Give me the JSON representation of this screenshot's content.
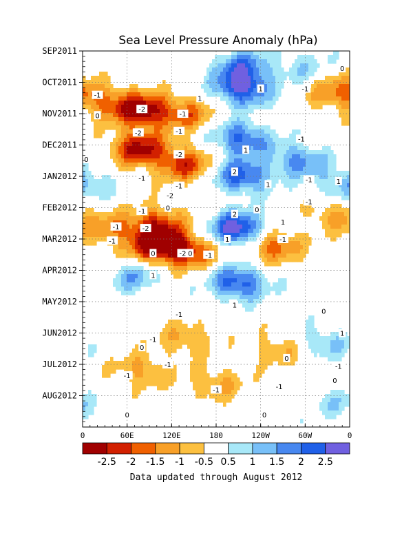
{
  "chart_data": {
    "type": "heatmap",
    "title": "Sea Level Pressure Anomaly (hPa)",
    "note": "Data updated through August 2012",
    "x_ticks": [
      "0",
      "60E",
      "120E",
      "180",
      "120W",
      "60W",
      "0"
    ],
    "x_tick_lon": [
      0,
      60,
      120,
      180,
      240,
      300,
      360
    ],
    "y_ticks": [
      "SEP2011",
      "OCT2011",
      "NOV2011",
      "DEC2011",
      "JAN2012",
      "FEB2012",
      "MAR2012",
      "APR2012",
      "MAY2012",
      "JUN2012",
      "JUL2012",
      "AUG2012"
    ],
    "y_tick_month": [
      0,
      1,
      2,
      3,
      4,
      5,
      6,
      7,
      8,
      9,
      10,
      11
    ],
    "ylim_month": [
      0,
      12
    ],
    "xlim_lon": [
      0,
      360
    ],
    "grid": true,
    "colorbar": {
      "tick_labels": [
        "-2.5",
        "-2",
        "-1.5",
        "-1",
        "-0.5",
        "0.5",
        "1",
        "1.5",
        "2",
        "2.5"
      ],
      "colors": [
        "#a00000",
        "#d22000",
        "#f06000",
        "#f8a028",
        "#fcc040",
        "#ffffff",
        "#a8e8f8",
        "#78c0f8",
        "#4888f0",
        "#2060e8",
        "#7060e0"
      ]
    },
    "levels": [
      -3,
      -2.5,
      -2,
      -1.5,
      -1,
      -0.5,
      0.5,
      1,
      1.5,
      2,
      2.5
    ],
    "anomaly_features": [
      {
        "lon": 80,
        "month": 1.9,
        "value": -2.9
      },
      {
        "lon": 140,
        "month": 2.0,
        "value": -1.6
      },
      {
        "lon": 30,
        "month": 1.6,
        "value": -1.3
      },
      {
        "lon": 75,
        "month": 3.1,
        "value": -2.6
      },
      {
        "lon": 135,
        "month": 3.6,
        "value": -2.2
      },
      {
        "lon": 100,
        "month": 5.5,
        "value": -2.0
      },
      {
        "lon": 35,
        "month": 5.7,
        "value": -1.3
      },
      {
        "lon": 100,
        "month": 6.2,
        "value": -3.2
      },
      {
        "lon": 145,
        "month": 6.4,
        "value": -2.0
      },
      {
        "lon": 255,
        "month": 6.2,
        "value": -2.0
      },
      {
        "lon": 335,
        "month": 5.2,
        "value": -1.1
      },
      {
        "lon": 340,
        "month": 1.3,
        "value": -1.5
      },
      {
        "lon": 140,
        "month": 9.2,
        "value": -1.1
      },
      {
        "lon": 80,
        "month": 10.2,
        "value": -1.2
      },
      {
        "lon": 265,
        "month": 9.5,
        "value": -1.0
      },
      {
        "lon": 180,
        "month": 10.6,
        "value": -1.1
      },
      {
        "lon": 215,
        "month": 0.5,
        "value": 1.8
      },
      {
        "lon": 215,
        "month": 1.2,
        "value": 2.6
      },
      {
        "lon": 215,
        "month": 2.8,
        "value": 2.2
      },
      {
        "lon": 215,
        "month": 4.0,
        "value": 2.3
      },
      {
        "lon": 210,
        "month": 5.7,
        "value": 3.1
      },
      {
        "lon": 210,
        "month": 7.4,
        "value": 2.4
      },
      {
        "lon": 70,
        "month": 7.2,
        "value": 1.3
      },
      {
        "lon": 295,
        "month": 0.5,
        "value": 0.9
      },
      {
        "lon": 290,
        "month": 3.5,
        "value": 1.7
      },
      {
        "lon": 345,
        "month": 4.3,
        "value": 0.9
      },
      {
        "lon": 10,
        "month": 4.2,
        "value": 0.7
      },
      {
        "lon": 345,
        "month": 11.3,
        "value": 0.8
      },
      {
        "lon": 325,
        "month": 9.3,
        "value": 1.1
      }
    ],
    "contour_labels": [
      {
        "text": "-1",
        "lon": 20,
        "month": 1.4
      },
      {
        "text": "-2",
        "lon": 80,
        "month": 1.85
      },
      {
        "text": "-1",
        "lon": 135,
        "month": 2.0
      },
      {
        "text": "-2",
        "lon": 75,
        "month": 2.6
      },
      {
        "text": "-1",
        "lon": 130,
        "month": 2.55
      },
      {
        "text": "-2",
        "lon": 130,
        "month": 3.3
      },
      {
        "text": "-1",
        "lon": 80,
        "month": 4.05
      },
      {
        "text": "-1",
        "lon": 130,
        "month": 4.3
      },
      {
        "text": "-2",
        "lon": 118,
        "month": 4.6
      },
      {
        "text": "-1",
        "lon": 80,
        "month": 5.1
      },
      {
        "text": "-1",
        "lon": 45,
        "month": 5.6
      },
      {
        "text": "-2",
        "lon": 85,
        "month": 5.65
      },
      {
        "text": "-1",
        "lon": 40,
        "month": 6.05
      },
      {
        "text": "-2",
        "lon": 135,
        "month": 6.45
      },
      {
        "text": "-1",
        "lon": 170,
        "month": 6.5
      },
      {
        "text": "-1",
        "lon": 270,
        "month": 6.0
      },
      {
        "text": "-1",
        "lon": 300,
        "month": 1.2
      },
      {
        "text": "-1",
        "lon": 295,
        "month": 2.8
      },
      {
        "text": "-1",
        "lon": 305,
        "month": 4.1
      },
      {
        "text": "-1",
        "lon": 305,
        "month": 4.8
      },
      {
        "text": "-1",
        "lon": 130,
        "month": 8.4
      },
      {
        "text": "-1",
        "lon": 95,
        "month": 9.2
      },
      {
        "text": "-1",
        "lon": 115,
        "month": 10.0
      },
      {
        "text": "-1",
        "lon": 60,
        "month": 10.35
      },
      {
        "text": "-1",
        "lon": 180,
        "month": 10.8
      },
      {
        "text": "-1",
        "lon": 265,
        "month": 10.7
      },
      {
        "text": "-1",
        "lon": 345,
        "month": 10.05
      },
      {
        "text": "1",
        "lon": 240,
        "month": 1.2
      },
      {
        "text": "1",
        "lon": 158,
        "month": 1.5
      },
      {
        "text": "1",
        "lon": 220,
        "month": 3.15
      },
      {
        "text": "2",
        "lon": 205,
        "month": 3.85
      },
      {
        "text": "1",
        "lon": 250,
        "month": 4.25
      },
      {
        "text": "2",
        "lon": 205,
        "month": 5.2
      },
      {
        "text": "1",
        "lon": 270,
        "month": 5.45
      },
      {
        "text": "1",
        "lon": 195,
        "month": 6.0
      },
      {
        "text": "1",
        "lon": 95,
        "month": 7.15
      },
      {
        "text": "1",
        "lon": 205,
        "month": 8.1
      },
      {
        "text": "1",
        "lon": 345,
        "month": 4.15
      },
      {
        "text": "1",
        "lon": 350,
        "month": 9.0
      },
      {
        "text": "0",
        "lon": 350,
        "month": 0.55
      },
      {
        "text": "0",
        "lon": 20,
        "month": 2.05
      },
      {
        "text": "0",
        "lon": 5,
        "month": 3.45
      },
      {
        "text": "0",
        "lon": 115,
        "month": 5.0
      },
      {
        "text": "0",
        "lon": 235,
        "month": 5.05
      },
      {
        "text": "0",
        "lon": 95,
        "month": 6.45
      },
      {
        "text": "0",
        "lon": 145,
        "month": 6.45
      },
      {
        "text": "0",
        "lon": 325,
        "month": 8.3
      },
      {
        "text": "0",
        "lon": 80,
        "month": 9.45
      },
      {
        "text": "0",
        "lon": 275,
        "month": 9.8
      },
      {
        "text": "0",
        "lon": 340,
        "month": 10.5
      },
      {
        "text": "0",
        "lon": 60,
        "month": 11.6
      },
      {
        "text": "0",
        "lon": 245,
        "month": 11.6
      }
    ]
  }
}
